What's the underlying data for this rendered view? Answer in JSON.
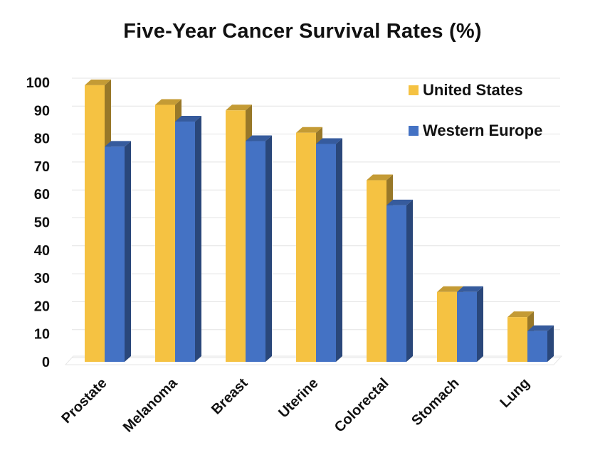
{
  "chart_data": {
    "type": "bar",
    "title": "Five-Year Cancer Survival Rates (%)",
    "xlabel": "",
    "ylabel": "",
    "categories": [
      "Prostate",
      "Melanoma",
      "Breast",
      "Uterine",
      "Colorectal",
      "Stomach",
      "Lung"
    ],
    "series": [
      {
        "name": "United States",
        "color": "#F5C242",
        "values": [
          99,
          92,
          90,
          82,
          65,
          25,
          16
        ]
      },
      {
        "name": "Western Europe",
        "color": "#4472C4",
        "values": [
          77,
          86,
          79,
          78,
          56,
          25,
          11
        ]
      }
    ],
    "ylim": [
      0,
      100
    ],
    "yticks": [
      "0",
      "10",
      "20",
      "30",
      "40",
      "50",
      "60",
      "70",
      "80",
      "90",
      "100"
    ],
    "grid": true,
    "legend_position": "top-right",
    "style": "3d-clustered-column"
  }
}
